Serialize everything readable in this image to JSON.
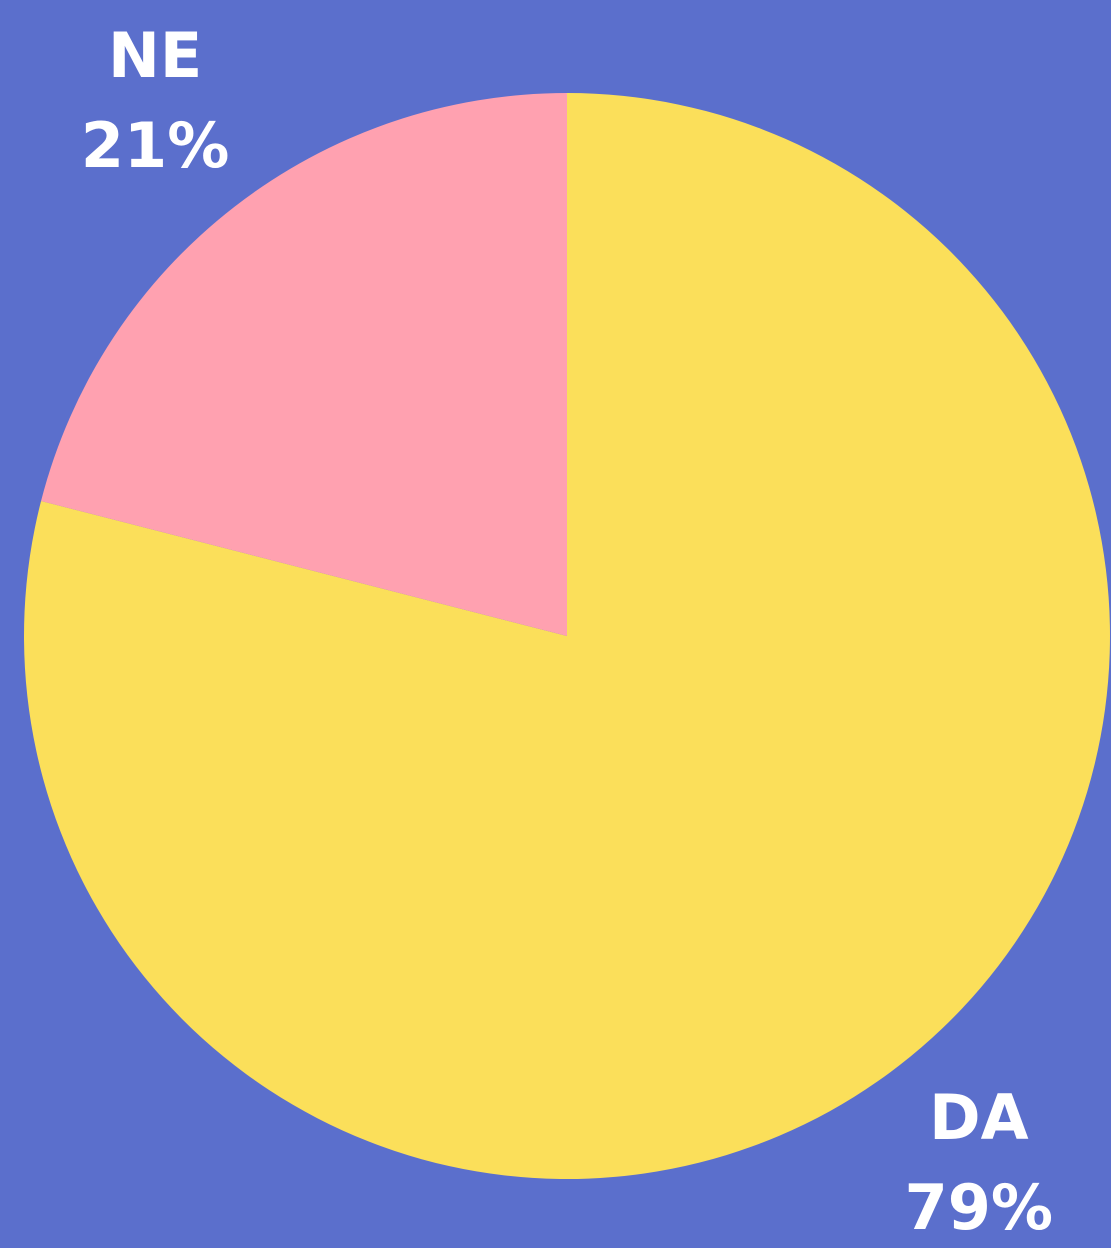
{
  "chart_data": {
    "type": "pie",
    "categories": [
      "DA",
      "NE"
    ],
    "values": [
      79,
      21
    ],
    "value_labels": [
      "79%",
      "21%"
    ],
    "colors": [
      "#fbdf5a",
      "#ffa1b0"
    ],
    "background": "#5b6fcc"
  }
}
